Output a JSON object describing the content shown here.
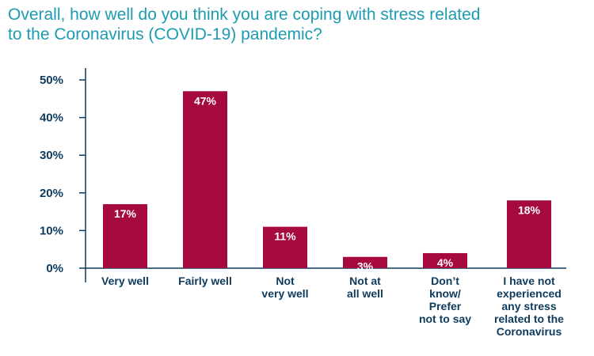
{
  "title": {
    "line1": "Overall, how well do you think you are coping with stress related",
    "line2": "to the Coronavirus (COVID-19) pandemic?"
  },
  "colors": {
    "bar": "#a6093d",
    "axis": "#0e3a5c",
    "title": "#1d9bb0"
  },
  "chart_data": {
    "type": "bar",
    "title": "Overall, how well do you think you are coping with stress related to the Coronavirus (COVID-19) pandemic?",
    "xlabel": "",
    "ylabel": "",
    "ylim": [
      0,
      50
    ],
    "yticks": [
      "0%",
      "10%",
      "20%",
      "30%",
      "40%",
      "50%"
    ],
    "grid": false,
    "categories": [
      [
        "Very well"
      ],
      [
        "Fairly well"
      ],
      [
        "Not",
        "very well"
      ],
      [
        "Not at",
        "all well"
      ],
      [
        "Don’t",
        "know/",
        "Prefer",
        "not to say"
      ],
      [
        "I have not",
        "experienced",
        "any stress",
        "related to the",
        "Coronavirus"
      ]
    ],
    "values": [
      17,
      47,
      11,
      3,
      4,
      18
    ],
    "data_labels": [
      "17%",
      "47%",
      "11%",
      "3%",
      "4%",
      "18%"
    ]
  }
}
